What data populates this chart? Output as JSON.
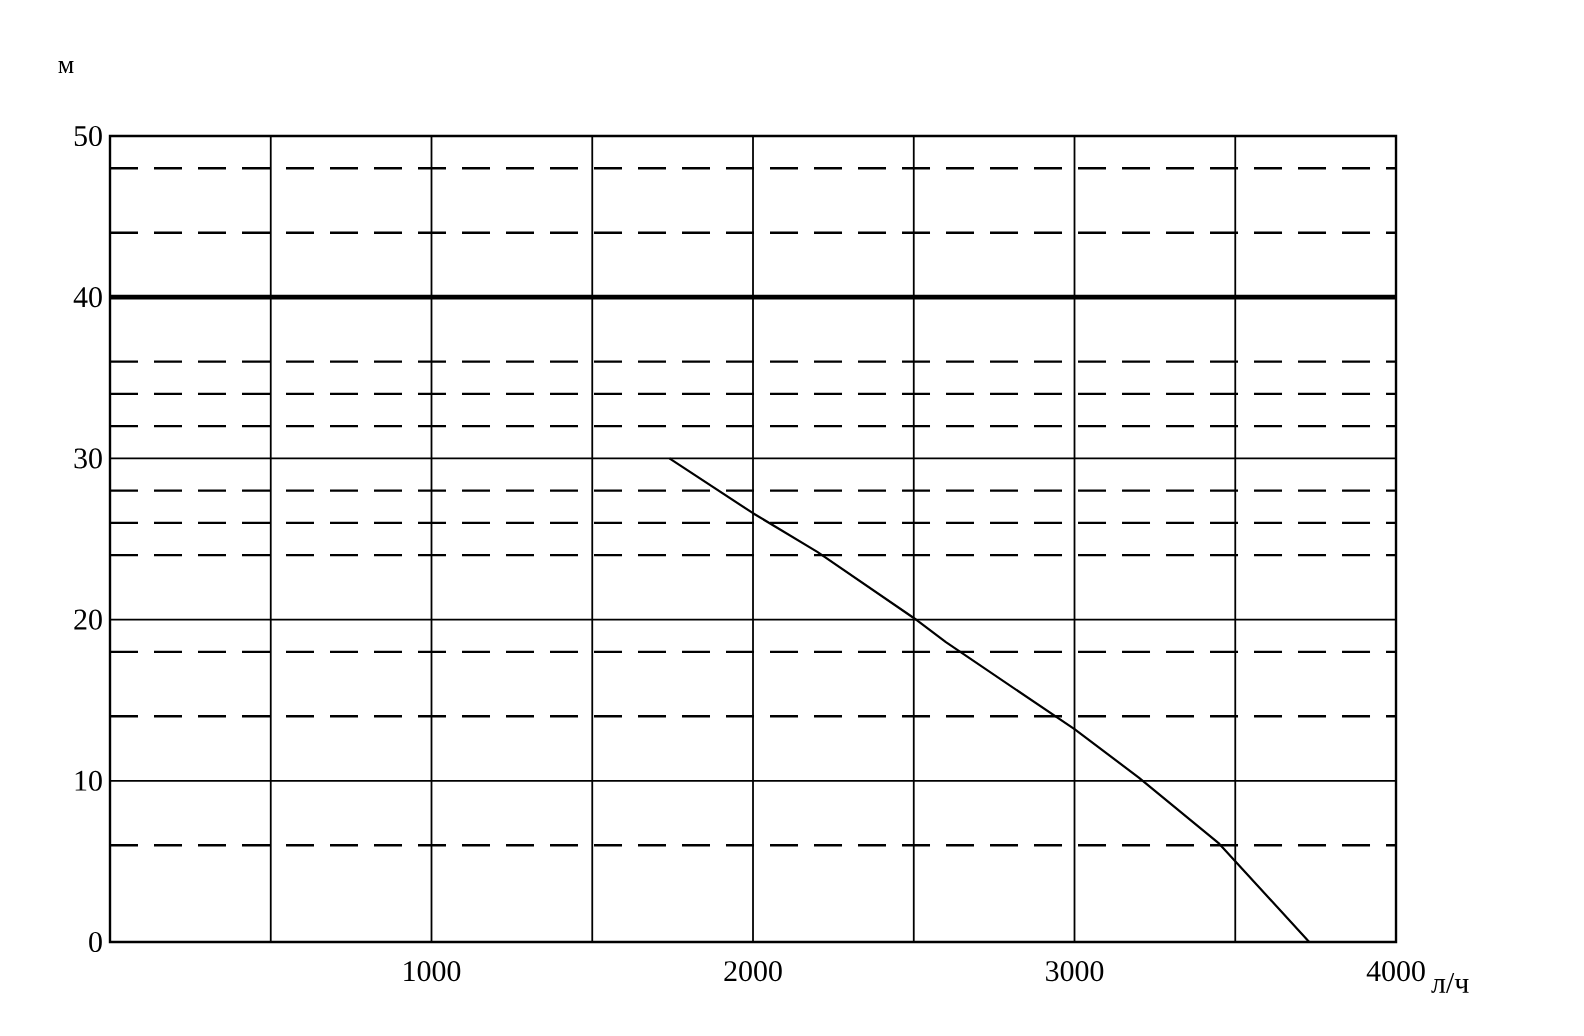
{
  "chart_data": {
    "type": "line",
    "xlabel": "л/ч",
    "ylabel": "м",
    "x": [
      1740,
      2000,
      2200,
      2500,
      2600,
      3000,
      3200,
      3450,
      3730
    ],
    "series": [
      {
        "color": "#000000",
        "values": [
          30,
          26.6,
          24.2,
          20.1,
          18.6,
          13.2,
          10.2,
          6.1,
          0
        ]
      }
    ],
    "xlim": [
      0,
      4000
    ],
    "ylim": [
      0,
      50
    ],
    "xticks": [
      {
        "value": 0,
        "label": null
      },
      {
        "value": 500,
        "label": null
      },
      1000,
      {
        "value": 1500,
        "label": null
      },
      2000,
      {
        "value": 2500,
        "label": null
      },
      3000,
      {
        "value": 3500,
        "label": null
      },
      4000
    ],
    "yticks": [
      0,
      10,
      20,
      30,
      40,
      50
    ],
    "grid": true,
    "marker": "none",
    "line_style": "solid",
    "ref_lines": [
      {
        "axis": "y",
        "value": 40,
        "line_style": "solid"
      },
      {
        "axis": "y",
        "value": 6,
        "line_style": "dashed"
      },
      {
        "axis": "y",
        "value": 14,
        "line_style": "dashed"
      },
      {
        "axis": "y",
        "value": 18,
        "line_style": "dashed"
      },
      {
        "axis": "y",
        "value": 24,
        "line_style": "dashed"
      },
      {
        "axis": "y",
        "value": 26,
        "line_style": "dashed"
      },
      {
        "axis": "y",
        "value": 28,
        "line_style": "dashed"
      },
      {
        "axis": "y",
        "value": 32,
        "line_style": "dashed"
      },
      {
        "axis": "y",
        "value": 34,
        "line_style": "dashed"
      },
      {
        "axis": "y",
        "value": 36,
        "line_style": "dashed"
      },
      {
        "axis": "y",
        "value": 44,
        "line_style": "dashed"
      },
      {
        "axis": "y",
        "value": 48,
        "line_style": "dashed"
      }
    ]
  }
}
